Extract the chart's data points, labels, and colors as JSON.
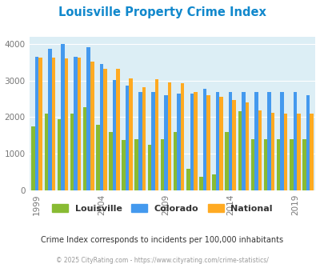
{
  "title": "Louisville Property Crime Index",
  "title_color": "#1188cc",
  "subtitle": "Crime Index corresponds to incidents per 100,000 inhabitants",
  "footer": "© 2025 CityRating.com - https://www.cityrating.com/crime-statistics/",
  "louisville_color": "#88bb33",
  "colorado_color": "#4499ee",
  "national_color": "#ffaa22",
  "bg_color": "#dceef5",
  "ylim": [
    0,
    4200
  ],
  "yticks": [
    0,
    1000,
    2000,
    3000,
    4000
  ],
  "years": [
    1999,
    2000,
    2001,
    2002,
    2003,
    2004,
    2005,
    2006,
    2007,
    2008,
    2009,
    2010,
    2011,
    2012,
    2013,
    2014,
    2015,
    2016,
    2017,
    2018,
    2019,
    2020
  ],
  "louisville_vals": [
    1750,
    2100,
    1940,
    2100,
    2280,
    1780,
    1600,
    1380,
    1400,
    1250,
    1400,
    1600,
    580,
    370,
    440,
    1600,
    2170,
    1400,
    1400,
    1400,
    1400,
    1400
  ],
  "colorado_vals": [
    3650,
    3870,
    4000,
    3650,
    3920,
    3460,
    3020,
    2870,
    2680,
    2680,
    2600,
    2650,
    2650,
    2780,
    2700,
    2680,
    2700,
    2680,
    2680,
    2680,
    2680,
    2600
  ],
  "national_vals": [
    3640,
    3640,
    3620,
    3640,
    3520,
    3330,
    3320,
    3060,
    2830,
    3050,
    2950,
    2940,
    2700,
    2600,
    2550,
    2480,
    2400,
    2180,
    2120,
    2100,
    2100,
    2100
  ],
  "tick_years": [
    1999,
    2004,
    2009,
    2014,
    2019
  ],
  "bar_width": 0.28
}
